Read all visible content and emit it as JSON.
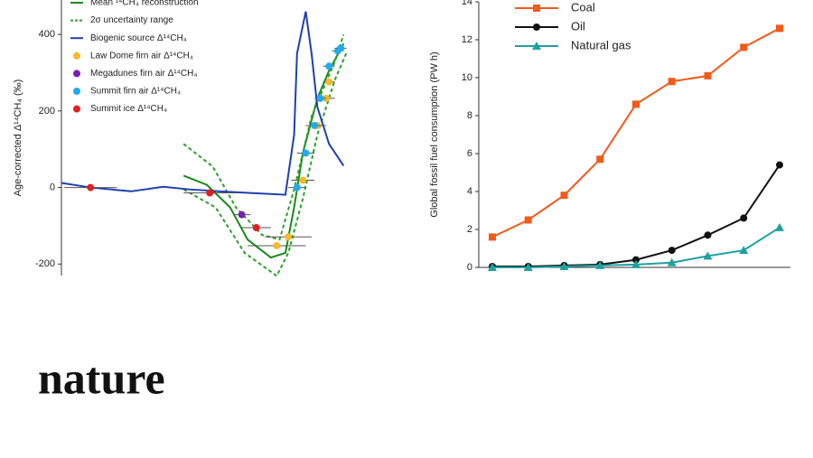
{
  "logo": "nature",
  "chart_data": [
    {
      "type": "scatter",
      "y_label": "Age-corrected Δ¹⁴CH₄ (‰)",
      "xlim": [
        0,
        100
      ],
      "ylim": [
        -230,
        490
      ],
      "yticks": [
        -200,
        0,
        200,
        400
      ],
      "series": [
        {
          "name": "Mean ¹⁴CH₄ reconstruction",
          "color": "#1a8a1a",
          "style": "solid",
          "x": [
            42,
            50,
            58,
            64,
            72,
            77,
            80,
            83,
            88,
            92,
            97
          ],
          "values": [
            31,
            7,
            -52,
            -136,
            -183,
            -171,
            -52,
            90,
            233,
            305,
            376
          ]
        },
        {
          "name": "2σ uncertainty range",
          "color": "#2aa02a",
          "style": "dashed",
          "x": [
            42,
            52,
            60,
            69,
            75,
            80,
            86,
            94,
            97,
            null,
            42,
            53,
            63,
            74,
            78,
            83,
            88,
            94,
            98
          ],
          "values": [
            114,
            55,
            -52,
            -124,
            -136,
            -5,
            186,
            329,
            400,
            null,
            -5,
            -52,
            -171,
            -231,
            -171,
            -29,
            138,
            281,
            352
          ]
        },
        {
          "name": "Biogenic source Δ¹⁴CH₄",
          "color": "#1f3fb0",
          "style": "solid",
          "x": [
            0,
            10,
            24,
            35,
            44,
            59,
            77,
            80,
            81,
            84,
            86,
            88,
            92,
            97
          ],
          "values": [
            12,
            0,
            -10,
            2,
            -5,
            -12,
            -19,
            138,
            350,
            460,
            350,
            210,
            114,
            57
          ]
        },
        {
          "name": "Law Dome firn air Δ¹⁴CH₄",
          "color": "#f5b82e",
          "style": "marker",
          "x": [
            74,
            78,
            83,
            88,
            91,
            92
          ],
          "values": [
            -152,
            -129,
            19,
            162,
            233,
            276
          ],
          "xerr": [
            10,
            8,
            4,
            3,
            3,
            2
          ]
        },
        {
          "name": "Megadunes firn air Δ¹⁴CH₄",
          "color": "#7a1fb0",
          "style": "marker",
          "x": [
            62
          ],
          "values": [
            -71
          ],
          "xerr": [
            3
          ]
        },
        {
          "name": "Summit firn air Δ¹⁴CH₄",
          "color": "#22aaee",
          "style": "marker",
          "x": [
            81,
            84,
            87,
            89,
            92,
            95,
            96
          ],
          "values": [
            0,
            90,
            162,
            233,
            317,
            357,
            364
          ],
          "xerr": [
            3,
            3,
            3,
            2,
            2,
            2,
            2
          ]
        },
        {
          "name": "Summit ice Δ¹⁴CH₄",
          "color": "#e02020",
          "style": "marker",
          "x": [
            10,
            51,
            67
          ],
          "values": [
            0,
            -14,
            -105
          ],
          "xerr": [
            9,
            9,
            5
          ]
        }
      ]
    },
    {
      "type": "line",
      "y_label": "Global fossil fuel consumption (PW h)",
      "categories": [
        null,
        null,
        null,
        null,
        null,
        null,
        null,
        null,
        null
      ],
      "ylim": [
        0,
        14
      ],
      "yticks": [
        0,
        2,
        4,
        6,
        8,
        10,
        12,
        14
      ],
      "series": [
        {
          "name": "Coal",
          "color": "#f05a1a",
          "marker": "square",
          "values": [
            1.6,
            2.5,
            3.8,
            5.7,
            8.6,
            9.8,
            10.1,
            11.6,
            12.6
          ]
        },
        {
          "name": "Oil",
          "color": "#111111",
          "marker": "circle",
          "values": [
            0.05,
            0.05,
            0.1,
            0.15,
            0.4,
            0.9,
            1.7,
            2.6,
            5.4
          ]
        },
        {
          "name": "Natural gas",
          "color": "#20a0a0",
          "marker": "triangle",
          "values": [
            0,
            0,
            0.05,
            0.1,
            0.15,
            0.25,
            0.6,
            0.9,
            2.1
          ]
        }
      ]
    }
  ]
}
